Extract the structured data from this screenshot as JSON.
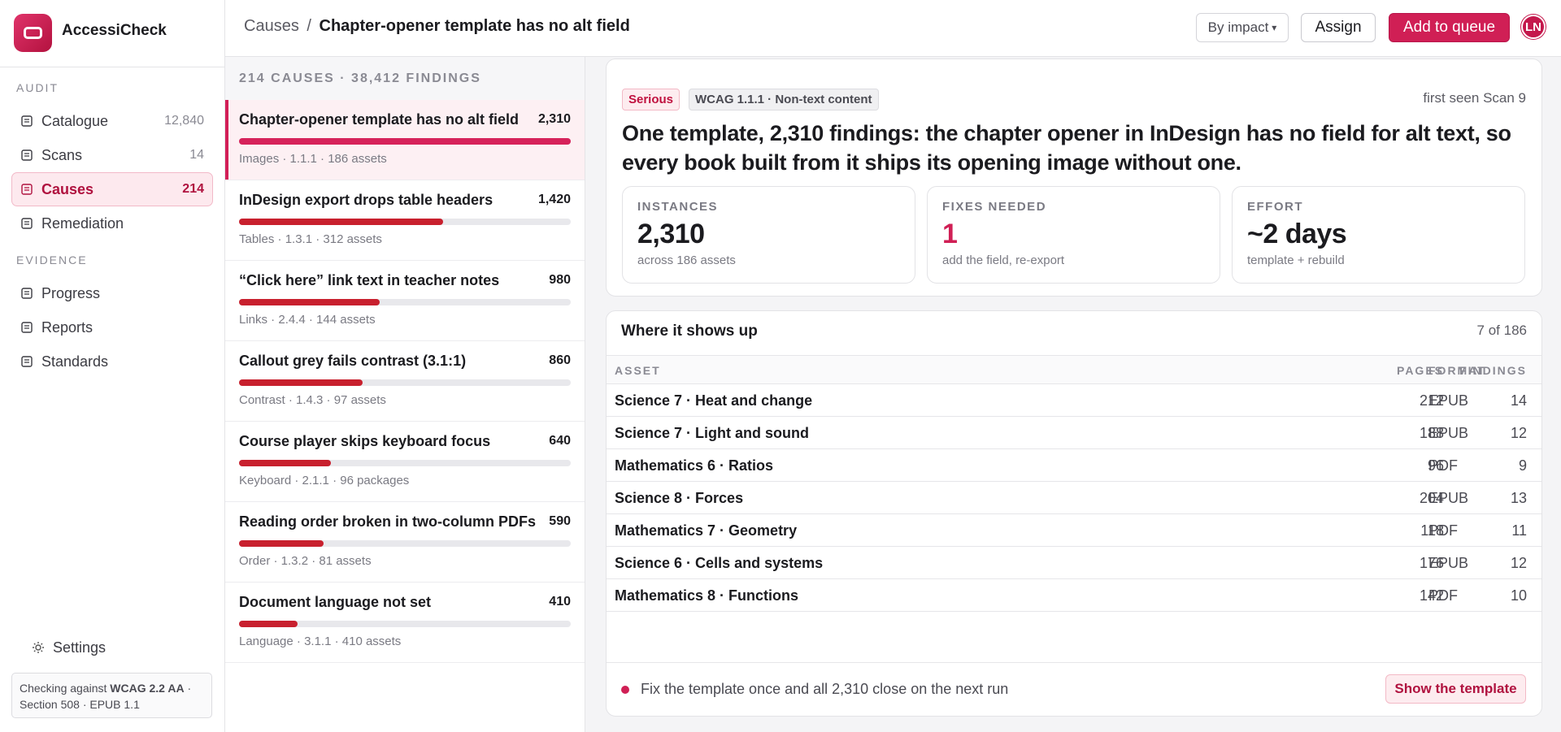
{
  "app": {
    "name": "AccessiCheck"
  },
  "nav": {
    "sections": [
      {
        "title": "AUDIT",
        "items": [
          {
            "label": "Catalogue",
            "count": "12,840"
          },
          {
            "label": "Scans",
            "count": 14
          },
          {
            "label": "Causes",
            "count": 214,
            "selected": true
          },
          {
            "label": "Remediation"
          }
        ]
      },
      {
        "title": "EVIDENCE",
        "items": [
          {
            "label": "Progress"
          },
          {
            "label": "Reports"
          },
          {
            "label": "Standards"
          }
        ]
      }
    ],
    "settings": "Settings",
    "footer": {
      "prefix": "Checking against",
      "standard": "WCAG 2.2 AA",
      "rest": "· Section 508 · EPUB 1.1"
    }
  },
  "topbar": {
    "crumb": "Causes",
    "separator": "/",
    "current": "Chapter-opener template has no alt field",
    "sort": "By impact",
    "assign": "Assign",
    "queue": "Add to queue",
    "avatar": "LN"
  },
  "causes": {
    "header": "214 CAUSES · 38,412 FINDINGS",
    "items": [
      {
        "title": "Chapter-opener template has no alt field",
        "count": {
          "value": 2310,
          "label": "2,310"
        },
        "meta": "Images · 1.1.1 · 186 assets",
        "selected": true
      },
      {
        "title": "InDesign export drops table headers",
        "count": {
          "value": 1420,
          "label": "1,420"
        },
        "meta": "Tables · 1.3.1 · 312 assets"
      },
      {
        "title": "“Click here” link text in teacher notes",
        "count": {
          "value": 980,
          "label": "980"
        },
        "meta": "Links · 2.4.4 · 144 assets"
      },
      {
        "title": "Callout grey fails contrast (3.1:1)",
        "count": {
          "value": 860,
          "label": "860"
        },
        "meta": "Contrast · 1.4.3 · 97 assets"
      },
      {
        "title": "Course player skips keyboard focus",
        "count": {
          "value": 640,
          "label": "640"
        },
        "meta": "Keyboard · 2.1.1 · 96 packages"
      },
      {
        "title": "Reading order broken in two-column PDFs",
        "count": {
          "value": 590,
          "label": "590"
        },
        "meta": "Order · 1.3.2 · 81 assets"
      },
      {
        "title": "Document language not set",
        "count": {
          "value": 410,
          "label": "410"
        },
        "meta": "Language · 3.1.1 · 410 assets"
      }
    ]
  },
  "detail": {
    "severity": "Serious",
    "criterion": "WCAG 1.1.1 · Non-text content",
    "first_seen": "first seen Scan 9",
    "headline": "One template, 2,310 findings: the chapter opener in InDesign has no field for alt text, so every book built from it ships its opening image without one.",
    "stats": [
      {
        "label": "INSTANCES",
        "value": "2,310",
        "sub": "across 186 assets"
      },
      {
        "label": "FIXES NEEDED",
        "value": 1,
        "sub": "add the field, re-export",
        "accent": true
      },
      {
        "label": "EFFORT",
        "value": "~2 days",
        "sub": "template + rebuild"
      }
    ]
  },
  "table": {
    "title": "Where it shows up",
    "count": "7 of 186",
    "columns": [
      "ASSET",
      "FORMAT",
      "PAGES",
      "FINDINGS"
    ],
    "rows": [
      [
        "Science 7 · Heat and change",
        "EPUB",
        212,
        14
      ],
      [
        "Science 7 · Light and sound",
        "EPUB",
        188,
        12
      ],
      [
        "Mathematics 6 · Ratios",
        "PDF",
        96,
        9
      ],
      [
        "Science 8 · Forces",
        "EPUB",
        204,
        13
      ],
      [
        "Mathematics 7 · Geometry",
        "PDF",
        118,
        11
      ],
      [
        "Science 6 · Cells and systems",
        "EPUB",
        176,
        12
      ],
      [
        "Mathematics 8 · Functions",
        "PDF",
        142,
        10
      ]
    ],
    "footer": "Fix the template once and all 2,310 close on the next run",
    "button": "Show the template"
  }
}
